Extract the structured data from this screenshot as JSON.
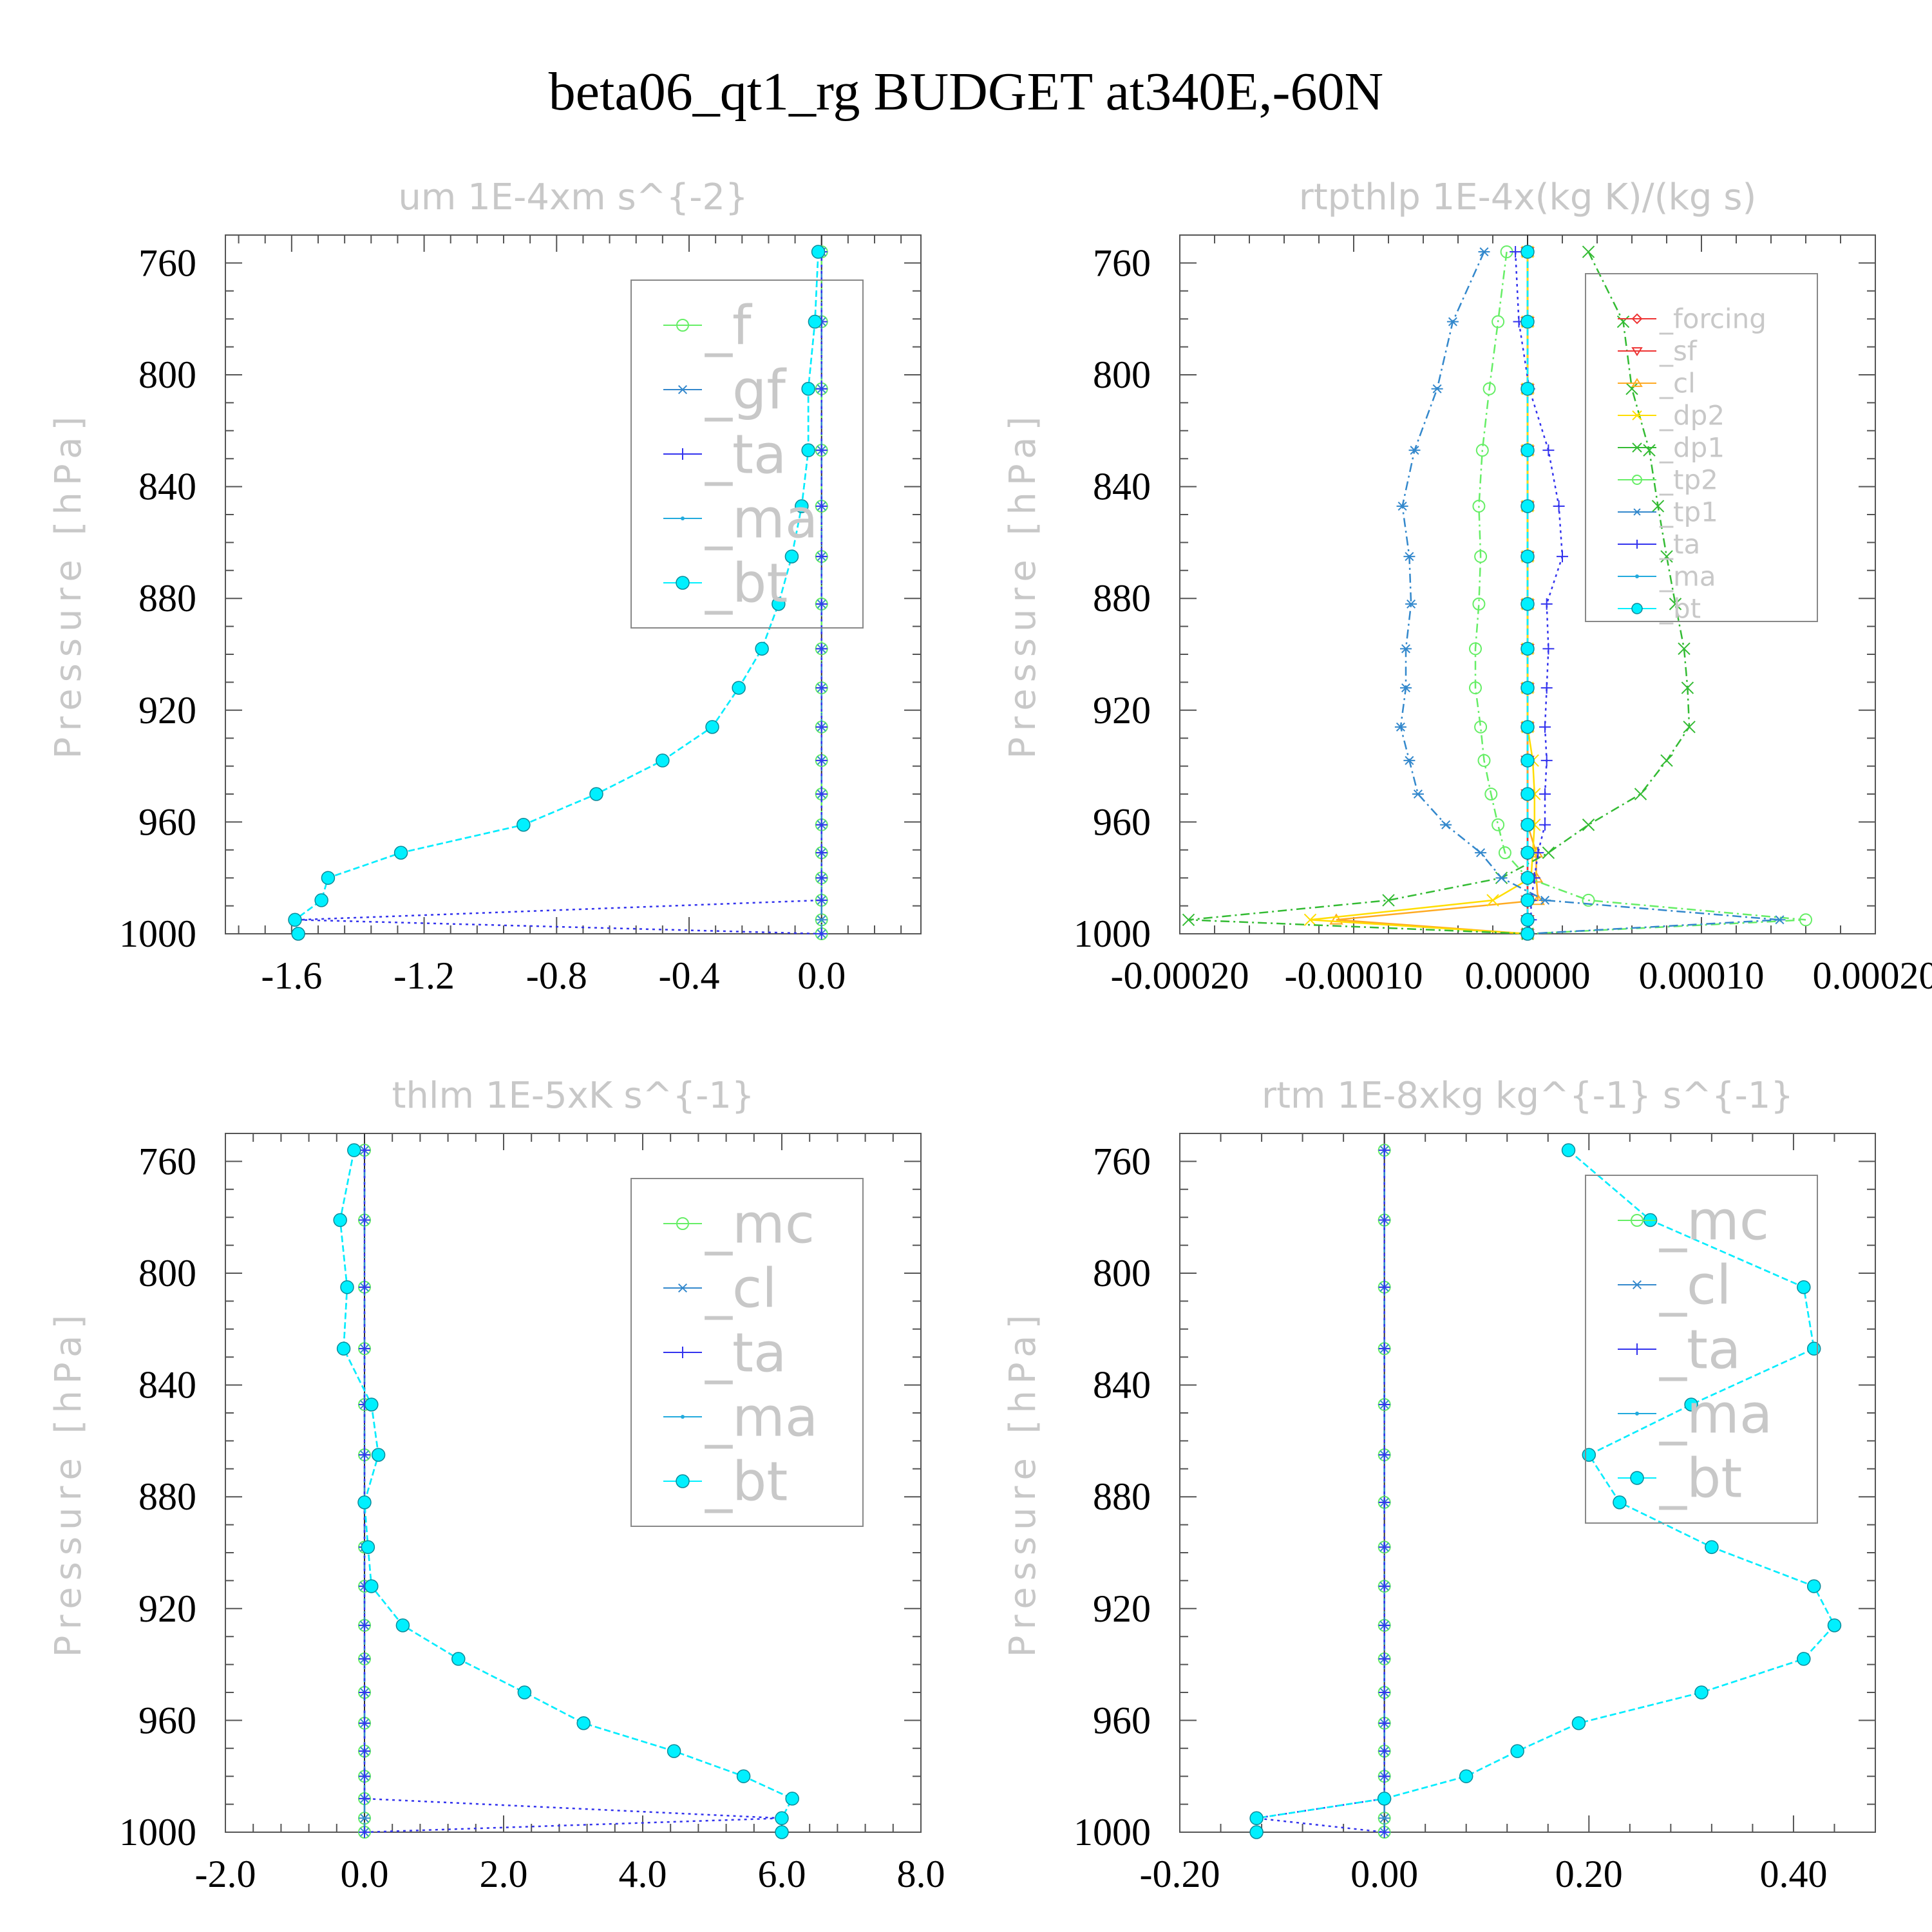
{
  "figure_title": "beta06_qt1_rg  BUDGET at340E,-60N",
  "chart_data": [
    {
      "type": "line",
      "title": "um   1E-4xm s^{-2}",
      "ylabel": "Pressure [hPa]",
      "ylim": [
        1000,
        750
      ],
      "xlim": [
        -1.8,
        0.3
      ],
      "xticks": [
        -1.6,
        -1.2,
        -0.8,
        -0.4,
        0.0
      ],
      "xtick_labels": [
        "-1.6",
        "-1.2",
        "-0.8",
        "-0.4",
        "0.0"
      ],
      "yticks": [
        760,
        800,
        840,
        880,
        920,
        960,
        1000
      ],
      "ytick_labels": [
        "760",
        "800",
        "840",
        "880",
        "920",
        "960",
        "1000"
      ],
      "legend_position": "top-right",
      "legend_font": 84,
      "y": [
        756,
        781,
        805,
        827,
        847,
        865,
        882,
        898,
        912,
        926,
        938,
        950,
        961,
        971,
        980,
        988,
        995,
        1000
      ],
      "series": [
        {
          "name": "_f",
          "color": "#66ee66",
          "marker": "circle-open",
          "dash": "6,8",
          "values": [
            0,
            0,
            0,
            0,
            0,
            0,
            0,
            0,
            0,
            0,
            0,
            0,
            0,
            0,
            0,
            0,
            0,
            0
          ]
        },
        {
          "name": "_gf",
          "color": "#3388cc",
          "marker": "star",
          "dash": "14,6,3,6",
          "values": [
            0,
            0,
            0,
            0,
            0,
            0,
            0,
            0,
            0,
            0,
            0,
            0,
            0,
            0,
            0,
            0,
            0,
            0
          ]
        },
        {
          "name": "_ta",
          "color": "#3333ee",
          "marker": "plus",
          "dash": "4,6",
          "values": [
            0,
            0,
            0,
            0,
            0,
            0,
            0,
            0,
            0,
            0,
            0,
            0,
            0,
            0,
            0,
            0,
            -1.58,
            0
          ]
        },
        {
          "name": "_ma",
          "color": "#22aadd",
          "marker": "dot",
          "dash": "10,5",
          "values": [
            -0.01,
            -0.02,
            -0.04,
            -0.04,
            -0.06,
            -0.09,
            -0.13,
            -0.18,
            -0.25,
            -0.33,
            -0.48,
            -0.68,
            -0.9,
            -1.27,
            -1.49,
            -1.51,
            -1.59,
            -1.58
          ]
        },
        {
          "name": "_bt",
          "color": "#00f0ff",
          "marker": "filled",
          "dash": "10,5",
          "values": [
            -0.01,
            -0.02,
            -0.04,
            -0.04,
            -0.06,
            -0.09,
            -0.13,
            -0.18,
            -0.25,
            -0.33,
            -0.48,
            -0.68,
            -0.9,
            -1.27,
            -1.49,
            -1.51,
            -1.59,
            -1.58
          ]
        }
      ]
    },
    {
      "type": "line",
      "title": "rtpthlp   1E-4x(kg K)/(kg s)",
      "ylabel": "Pressure [hPa]",
      "ylim": [
        1000,
        750
      ],
      "xlim": [
        -0.0002,
        0.0002
      ],
      "xticks": [
        -0.0002,
        -0.0001,
        0.0,
        0.0001,
        0.0002
      ],
      "xtick_labels": [
        "-0.00020",
        "-0.00010",
        "0.00000",
        "0.00010",
        "0.00020"
      ],
      "yticks": [
        760,
        800,
        840,
        880,
        920,
        960,
        1000
      ],
      "ytick_labels": [
        "760",
        "800",
        "840",
        "880",
        "920",
        "960",
        "1000"
      ],
      "legend_position": "top-right",
      "legend_font": 42,
      "y": [
        756,
        781,
        805,
        827,
        847,
        865,
        882,
        898,
        912,
        926,
        938,
        950,
        961,
        971,
        980,
        988,
        995,
        1000
      ],
      "series": [
        {
          "name": "_forcing",
          "color": "#ee3333",
          "marker": "diamond-open",
          "dash": "",
          "values": [
            0,
            0,
            0,
            0,
            0,
            0,
            0,
            0,
            0,
            0,
            0,
            0,
            0,
            0,
            0,
            0,
            0,
            0
          ]
        },
        {
          "name": "_sf",
          "color": "#ee3333",
          "marker": "tri-down",
          "dash": "",
          "values": [
            0,
            0,
            0,
            0,
            0,
            0,
            0,
            0,
            0,
            0,
            0,
            0,
            0,
            0,
            0,
            0,
            0,
            0
          ]
        },
        {
          "name": "_cl",
          "color": "#ffaa22",
          "marker": "tri-up",
          "dash": "",
          "values": [
            0,
            0,
            0,
            0,
            0,
            0,
            0,
            0,
            0,
            0,
            0,
            0,
            0,
            5e-06,
            5e-06,
            6e-06,
            -0.00011,
            0
          ]
        },
        {
          "name": "_dp2",
          "color": "#ffdd00",
          "marker": "x",
          "dash": "",
          "values": [
            0,
            0,
            0,
            0,
            0,
            0,
            0,
            0,
            0,
            0,
            3e-06,
            4e-06,
            4e-06,
            3e-06,
            2e-06,
            -2e-05,
            -0.000125,
            0
          ]
        },
        {
          "name": "_dp1",
          "color": "#33bb33",
          "marker": "x",
          "dash": "14,6,3,6",
          "values": [
            3.5e-05,
            5.5e-05,
            6e-05,
            7e-05,
            7.5e-05,
            8e-05,
            8.5e-05,
            9e-05,
            9.2e-05,
            9.3e-05,
            8e-05,
            6.5e-05,
            3.5e-05,
            1.2e-05,
            -1.5e-05,
            -8e-05,
            -0.000195,
            0
          ]
        },
        {
          "name": "_tp2",
          "color": "#66ee66",
          "marker": "circle-open",
          "dash": "14,6,3,6",
          "values": [
            -1.2e-05,
            -1.7e-05,
            -2.2e-05,
            -2.6e-05,
            -2.8e-05,
            -2.7e-05,
            -2.8e-05,
            -3e-05,
            -3e-05,
            -2.7e-05,
            -2.5e-05,
            -2.1e-05,
            -1.7e-05,
            -1.3e-05,
            0,
            3.5e-05,
            0.00016,
            0
          ]
        },
        {
          "name": "_tp1",
          "color": "#3388cc",
          "marker": "star",
          "dash": "14,6,3,6",
          "values": [
            -2.5e-05,
            -4.3e-05,
            -5.2e-05,
            -6.5e-05,
            -7.2e-05,
            -6.8e-05,
            -6.7e-05,
            -7e-05,
            -7e-05,
            -7.3e-05,
            -6.8e-05,
            -6.3e-05,
            -4.7e-05,
            -2.7e-05,
            -1.5e-05,
            1e-05,
            0.000145,
            0
          ]
        },
        {
          "name": "_ta",
          "color": "#3333ee",
          "marker": "plus",
          "dash": "4,6",
          "values": [
            -7e-06,
            -5e-06,
            1e-06,
            1.2e-05,
            1.8e-05,
            2e-05,
            1.1e-05,
            1.2e-05,
            1.1e-05,
            1e-05,
            1.1e-05,
            1e-05,
            1e-05,
            6e-06,
            4e-06,
            2e-06,
            2e-06,
            0
          ]
        },
        {
          "name": "_ma",
          "color": "#22aadd",
          "marker": "dot",
          "dash": "10,5",
          "values": [
            0,
            0,
            0,
            0,
            0,
            0,
            0,
            0,
            0,
            0,
            0,
            0,
            0,
            0,
            0,
            0,
            0,
            0
          ]
        },
        {
          "name": "_bt",
          "color": "#00f0ff",
          "marker": "filled",
          "dash": "10,5",
          "values": [
            0,
            0,
            0,
            0,
            0,
            0,
            0,
            0,
            0,
            0,
            0,
            0,
            0,
            0,
            0,
            0,
            0,
            0
          ]
        }
      ]
    },
    {
      "type": "line",
      "title": "thlm   1E-5xK s^{-1}",
      "ylabel": "Pressure [hPa]",
      "ylim": [
        1000,
        750
      ],
      "xlim": [
        -2.0,
        8.0
      ],
      "xticks": [
        -2.0,
        0.0,
        2.0,
        4.0,
        6.0,
        8.0
      ],
      "xtick_labels": [
        "-2.0",
        "0.0",
        "2.0",
        "4.0",
        "6.0",
        "8.0"
      ],
      "yticks": [
        760,
        800,
        840,
        880,
        920,
        960,
        1000
      ],
      "ytick_labels": [
        "760",
        "800",
        "840",
        "880",
        "920",
        "960",
        "1000"
      ],
      "legend_position": "top-right",
      "legend_font": 84,
      "y": [
        756,
        781,
        805,
        827,
        847,
        865,
        882,
        898,
        912,
        926,
        938,
        950,
        961,
        971,
        980,
        988,
        995,
        1000
      ],
      "series": [
        {
          "name": "_mc",
          "color": "#66ee66",
          "marker": "circle-open",
          "dash": "14,6,3,6",
          "values": [
            0,
            0,
            0,
            0,
            0,
            0,
            0,
            0,
            0,
            0,
            0,
            0,
            0,
            0,
            0,
            0,
            0,
            0
          ]
        },
        {
          "name": "_cl",
          "color": "#3388cc",
          "marker": "star",
          "dash": "14,6,3,6",
          "values": [
            0,
            0,
            0,
            0,
            0,
            0,
            0,
            0,
            0,
            0,
            0,
            0,
            0,
            0,
            0,
            0,
            0,
            0
          ]
        },
        {
          "name": "_ta",
          "color": "#3333ee",
          "marker": "plus",
          "dash": "4,6",
          "values": [
            0,
            0,
            0,
            0,
            0,
            0,
            0,
            0,
            0,
            0,
            0,
            0,
            0,
            0,
            0,
            0,
            6.0,
            0
          ]
        },
        {
          "name": "_ma",
          "color": "#22aadd",
          "marker": "dot",
          "dash": "10,5",
          "values": [
            -0.15,
            -0.35,
            -0.25,
            -0.3,
            0.1,
            0.2,
            0.0,
            0.05,
            0.1,
            0.55,
            1.35,
            2.3,
            3.15,
            4.45,
            5.45,
            6.15,
            6.0,
            6.0
          ]
        },
        {
          "name": "_bt",
          "color": "#00f0ff",
          "marker": "filled",
          "dash": "10,5",
          "values": [
            -0.15,
            -0.35,
            -0.25,
            -0.3,
            0.1,
            0.2,
            0.0,
            0.05,
            0.1,
            0.55,
            1.35,
            2.3,
            3.15,
            4.45,
            5.45,
            6.15,
            6.0,
            6.0
          ]
        }
      ]
    },
    {
      "type": "line",
      "title": "rtm   1E-8xkg kg^{-1} s^{-1}",
      "ylabel": "Pressure [hPa]",
      "ylim": [
        1000,
        750
      ],
      "xlim": [
        -0.2,
        0.48
      ],
      "xticks": [
        -0.2,
        0.0,
        0.2,
        0.4
      ],
      "xtick_labels": [
        "-0.20",
        "0.00",
        "0.20",
        "0.40"
      ],
      "yticks": [
        760,
        800,
        840,
        880,
        920,
        960,
        1000
      ],
      "ytick_labels": [
        "760",
        "800",
        "840",
        "880",
        "920",
        "960",
        "1000"
      ],
      "legend_position": "top-right",
      "legend_font": 84,
      "y": [
        756,
        781,
        805,
        827,
        847,
        865,
        882,
        898,
        912,
        926,
        938,
        950,
        961,
        971,
        980,
        988,
        995,
        1000
      ],
      "series": [
        {
          "name": "_mc",
          "color": "#66ee66",
          "marker": "circle-open",
          "dash": "14,6,3,6",
          "values": [
            0,
            0,
            0,
            0,
            0,
            0,
            0,
            0,
            0,
            0,
            0,
            0,
            0,
            0,
            0,
            0,
            0,
            0
          ]
        },
        {
          "name": "_cl",
          "color": "#3388cc",
          "marker": "star",
          "dash": "14,6,3,6",
          "values": [
            0,
            0,
            0,
            0,
            0,
            0,
            0,
            0,
            0,
            0,
            0,
            0,
            0,
            0,
            0,
            0,
            0,
            0
          ]
        },
        {
          "name": "_ta",
          "color": "#3333ee",
          "marker": "plus",
          "dash": "4,6",
          "values": [
            0,
            0,
            0,
            0,
            0,
            0,
            0,
            0,
            0,
            0,
            0,
            0,
            0,
            0,
            0,
            0,
            -0.125,
            0
          ]
        },
        {
          "name": "_ma",
          "color": "#22aadd",
          "marker": "dot",
          "dash": "10,5",
          "values": [
            0.18,
            0.26,
            0.41,
            0.42,
            0.3,
            0.2,
            0.23,
            0.32,
            0.42,
            0.44,
            0.41,
            0.31,
            0.19,
            0.13,
            0.08,
            0.0,
            -0.125,
            -0.125
          ]
        },
        {
          "name": "_bt",
          "color": "#00f0ff",
          "marker": "filled",
          "dash": "10,5",
          "values": [
            0.18,
            0.26,
            0.41,
            0.42,
            0.3,
            0.2,
            0.23,
            0.32,
            0.42,
            0.44,
            0.41,
            0.31,
            0.19,
            0.13,
            0.08,
            0.0,
            -0.125,
            -0.125
          ]
        }
      ]
    }
  ]
}
